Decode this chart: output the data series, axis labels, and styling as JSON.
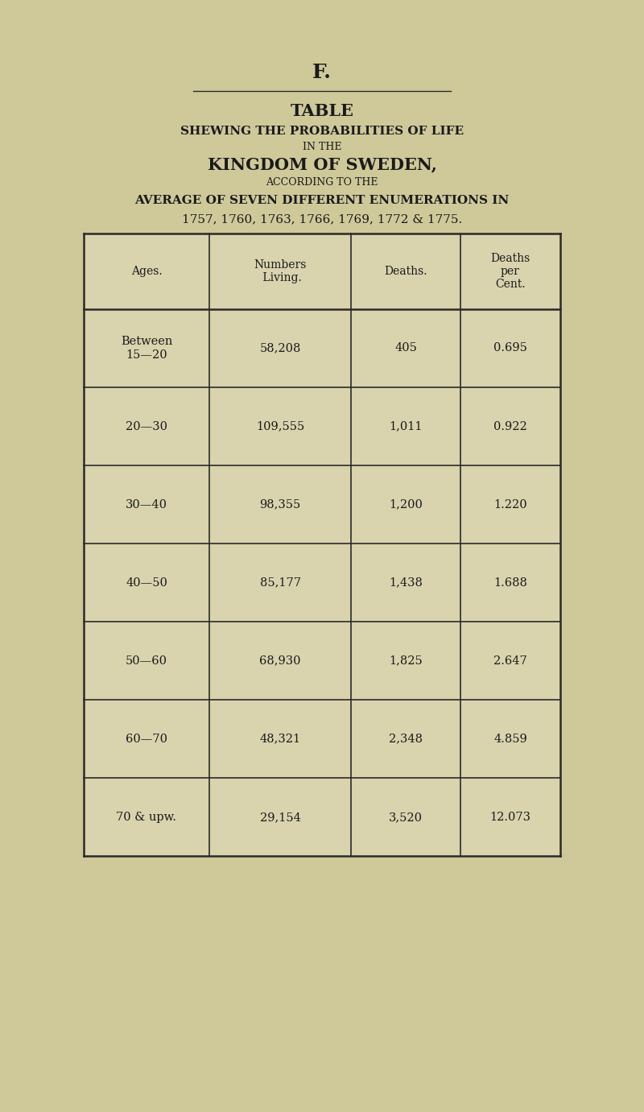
{
  "page_bg": "#cfc99a",
  "letter": "F.",
  "title_line1": "TABLE",
  "title_line2": "SHEWING THE PROBABILITIES OF LIFE",
  "title_line3": "IN THE",
  "title_line4": "KINGDOM OF SWEDEN,",
  "title_line5": "ACCORDING TO THE",
  "title_line6": "AVERAGE OF SEVEN DIFFERENT ENUMERATIONS IN",
  "title_line7": "1757, 1760, 1763, 1766, 1769, 1772 & 1775.",
  "col_headers": [
    "Ages.",
    "Numbers\n Living.",
    "Deaths.",
    "Deaths\nper\nCent."
  ],
  "rows": [
    [
      "Between\n15—20",
      "58,208",
      "405",
      "0.695"
    ],
    [
      "20—30",
      "109,555",
      "1,011",
      "0.922"
    ],
    [
      "30—40",
      "98,355",
      "1,200",
      "1.220"
    ],
    [
      "40—50",
      "85,177",
      "1,438",
      "1.688"
    ],
    [
      "50—60",
      "68,930",
      "1,825",
      "2.647"
    ],
    [
      "60—70",
      "48,321",
      "2,348",
      "4.859"
    ],
    [
      "70 & upw.",
      "29,154",
      "3,520",
      "12.073"
    ]
  ],
  "table_bg": "#d9d3ae",
  "text_color": "#1a1a1a",
  "line_color": "#2a2a2a"
}
